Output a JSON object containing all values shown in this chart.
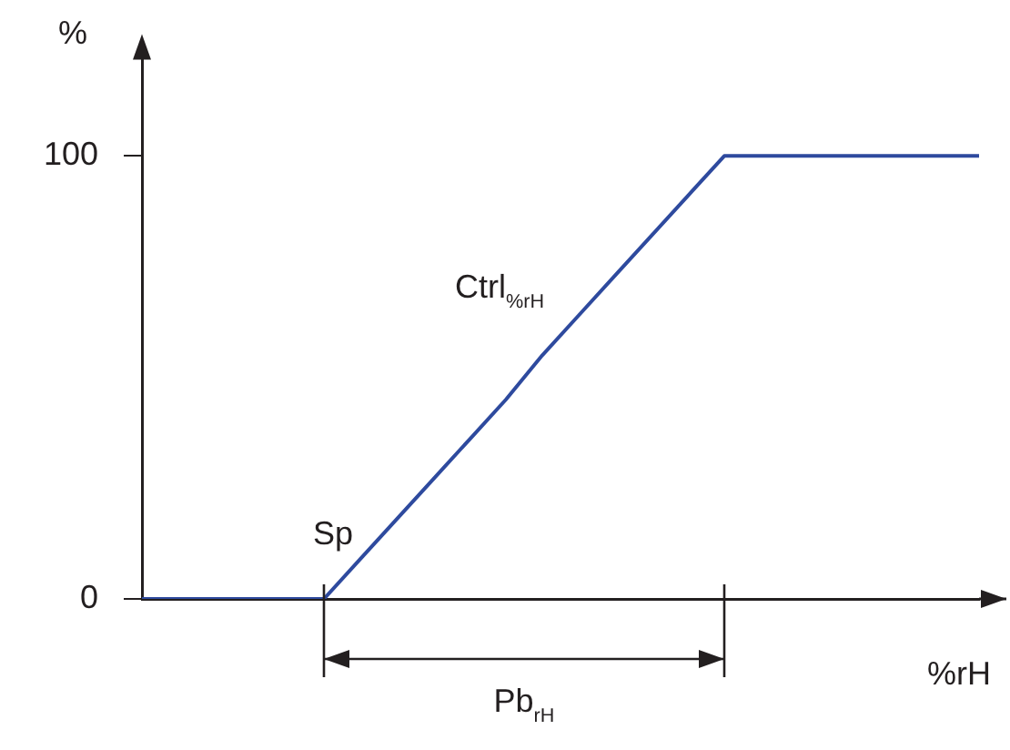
{
  "chart_data": {
    "type": "line",
    "xlabel": "%rH",
    "ylabel": "%",
    "categories": [
      null,
      null,
      null,
      null,
      null,
      null,
      null,
      null,
      null,
      null,
      null,
      null,
      null,
      null,
      null,
      null,
      null,
      null,
      null,
      null,
      null,
      null,
      null,
      null
    ],
    "series": [
      {
        "color": "#2e4a9e",
        "values": [
          0,
          0,
          0,
          0,
          0,
          0,
          9,
          18,
          27,
          36,
          45,
          55,
          64,
          73,
          82,
          91,
          100,
          100,
          100,
          100,
          100,
          100,
          100,
          100
        ]
      }
    ],
    "ylim": [
      0,
      125
    ],
    "yticks": [
      0,
      100
    ],
    "tick_labels": "y",
    "grid": false,
    "legend": false,
    "marker": "none",
    "line_style": "solid",
    "annotations": [
      "Sp",
      "Ctrl$_{%rH}$",
      "Pb$_{rH}$"
    ]
  }
}
